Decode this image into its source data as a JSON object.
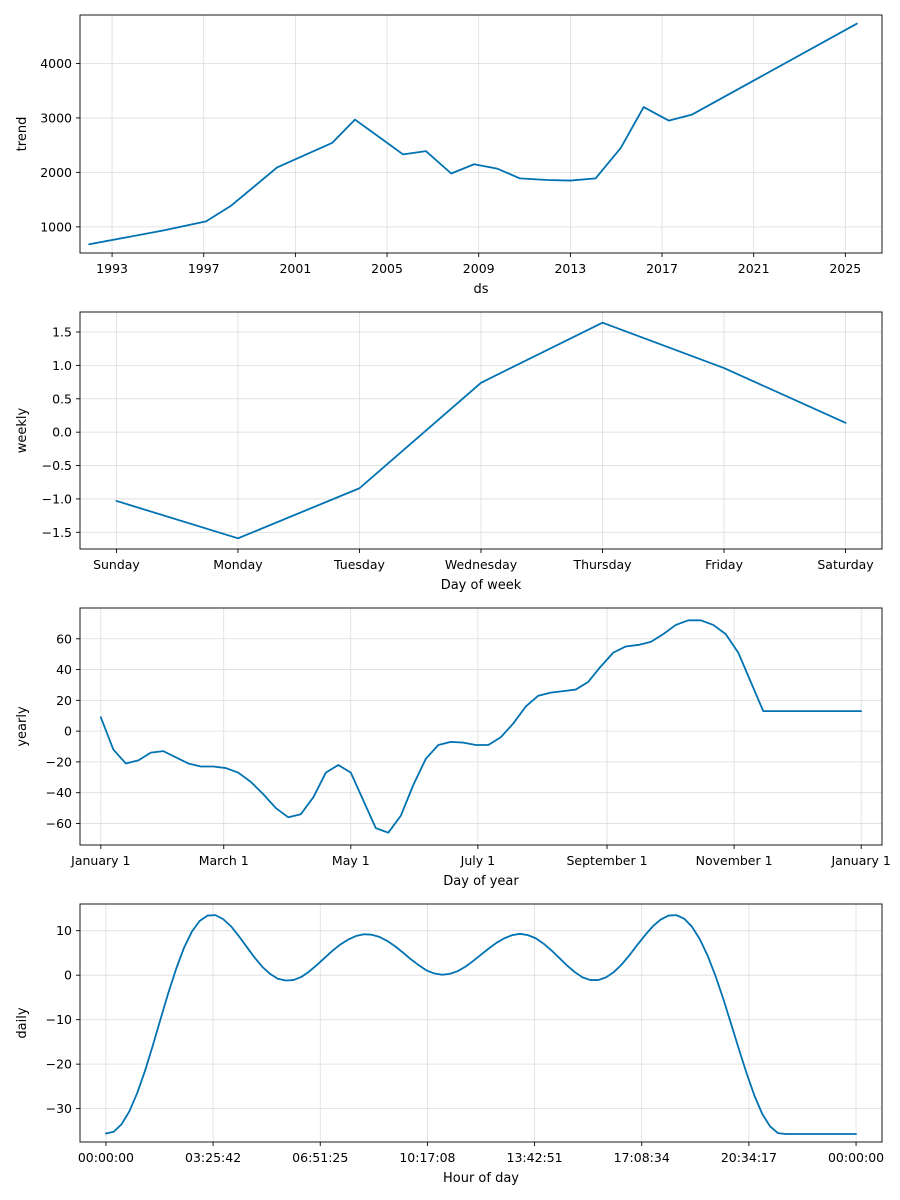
{
  "chart_data": [
    {
      "type": "line",
      "name": "trend",
      "xlabel": "ds",
      "ylabel": "trend",
      "grid": true,
      "xlim": [
        1991.6,
        2026.6
      ],
      "ylim": [
        520,
        4890
      ],
      "xticks": [
        1993,
        1997,
        2001,
        2005,
        2009,
        2013,
        2017,
        2021,
        2025
      ],
      "xtick_labels": [
        "1993",
        "1997",
        "2001",
        "2005",
        "2009",
        "2013",
        "2017",
        "2021",
        "2025"
      ],
      "yticks": [
        1000,
        2000,
        3000,
        4000
      ],
      "ytick_labels": [
        "1000",
        "2000",
        "3000",
        "4000"
      ],
      "x": [
        1992.0,
        1995.2,
        1997.1,
        1998.2,
        2000.2,
        2002.6,
        2003.6,
        2005.7,
        2006.7,
        2007.8,
        2008.8,
        2009.8,
        2010.8,
        2012.0,
        2013.0,
        2014.1,
        2015.2,
        2016.2,
        2017.3,
        2018.3,
        2025.5
      ],
      "y": [
        680,
        930,
        1100,
        1390,
        2090,
        2540,
        2970,
        2330,
        2390,
        1980,
        2150,
        2070,
        1890,
        1860,
        1850,
        1890,
        2450,
        3200,
        2950,
        3060,
        4730
      ]
    },
    {
      "type": "line",
      "name": "weekly",
      "xlabel": "Day of week",
      "ylabel": "weekly",
      "grid": true,
      "xlim": [
        -0.3,
        6.3
      ],
      "ylim": [
        -1.75,
        1.8
      ],
      "xticks": [
        0,
        1,
        2,
        3,
        4,
        5,
        6
      ],
      "xtick_labels": [
        "Sunday",
        "Monday",
        "Tuesday",
        "Wednesday",
        "Thursday",
        "Friday",
        "Saturday"
      ],
      "yticks": [
        -1.5,
        -1.0,
        -0.5,
        0.0,
        0.5,
        1.0,
        1.5
      ],
      "ytick_labels": [
        "−1.5",
        "−1.0",
        "−0.5",
        "0.0",
        "0.5",
        "1.0",
        "1.5"
      ],
      "x": [
        0,
        1,
        2,
        3,
        4,
        5,
        6
      ],
      "y": [
        -1.03,
        -1.59,
        -0.84,
        0.74,
        1.64,
        0.96,
        0.14
      ]
    },
    {
      "type": "line",
      "name": "yearly",
      "xlabel": "Day of year",
      "ylabel": "yearly",
      "grid": true,
      "xlim": [
        -10,
        375
      ],
      "ylim": [
        -74,
        80
      ],
      "xticks": [
        0,
        59,
        120,
        181,
        243,
        304,
        365
      ],
      "xtick_labels": [
        "January 1",
        "March 1",
        "May 1",
        "July 1",
        "September 1",
        "November 1",
        "January 1"
      ],
      "yticks": [
        -60,
        -40,
        -20,
        0,
        20,
        40,
        60
      ],
      "ytick_labels": [
        "−60",
        "−40",
        "−20",
        "0",
        "20",
        "40",
        "60"
      ],
      "x": [
        0,
        6,
        12,
        18,
        24,
        30,
        36,
        42,
        48,
        54,
        60,
        66,
        72,
        78,
        84,
        90,
        96,
        102,
        108,
        114,
        120,
        126,
        132,
        138,
        144,
        150,
        156,
        162,
        168,
        174,
        180,
        186,
        192,
        198,
        204,
        210,
        216,
        222,
        228,
        234,
        240,
        246,
        252,
        258,
        264,
        270,
        276,
        282,
        288,
        294,
        300,
        306,
        312,
        318,
        324,
        330,
        336,
        342,
        348,
        354,
        360,
        365
      ],
      "y": [
        9,
        -12,
        -21,
        -19,
        -14,
        -13,
        -17,
        -21,
        -23,
        -23,
        -24,
        -27,
        -33,
        -41,
        -50,
        -56,
        -54,
        -43,
        -27,
        -22,
        -27,
        -45,
        -63,
        -66,
        -55,
        -35,
        -18,
        -9,
        -7,
        -7.5,
        -9,
        -9,
        -4,
        5,
        16,
        23,
        25,
        26,
        27,
        32,
        42,
        51,
        55,
        56,
        58,
        63,
        69,
        72,
        72,
        69,
        63,
        51,
        32,
        13,
        13,
        13,
        13,
        13,
        13,
        13,
        13,
        13
      ],
      "x_detail": [
        0,
        6,
        12,
        18,
        24,
        30,
        36,
        42,
        48,
        54,
        60,
        66,
        72,
        78,
        84,
        90,
        96,
        102,
        108,
        114,
        120,
        126,
        132,
        138,
        144,
        150,
        156,
        162,
        168,
        174,
        180,
        186,
        192,
        198,
        204,
        210,
        216,
        222,
        228,
        234,
        240,
        246,
        252,
        258,
        264,
        270,
        276,
        282,
        288,
        294,
        300,
        306,
        312,
        318,
        324,
        330,
        336,
        342,
        348,
        354,
        360,
        365
      ],
      "y_detail": [
        9,
        -12,
        -21,
        -19,
        -14,
        -13,
        -17,
        -21,
        -23,
        -23,
        -24,
        -27,
        -33,
        -41,
        -50,
        -56,
        -54,
        -43,
        -27,
        -22,
        -27,
        -45,
        -63,
        -66,
        -55,
        -35,
        -18,
        -9,
        -7,
        -7.5,
        -9,
        -9,
        -4,
        5,
        16,
        23,
        25,
        26,
        27,
        32,
        42,
        51,
        55,
        56,
        58,
        63,
        69,
        72,
        72,
        69,
        63,
        51,
        32,
        13,
        13,
        13,
        13,
        13,
        13,
        13,
        13,
        13
      ]
    },
    {
      "type": "line",
      "name": "daily",
      "xlabel": "Hour of day",
      "ylabel": "daily",
      "grid": true,
      "xlim": [
        -0.83,
        24.83
      ],
      "ylim": [
        -37.5,
        16
      ],
      "xticks": [
        0,
        3.4284,
        6.8569,
        10.2856,
        13.7142,
        17.1428,
        20.5714,
        24
      ],
      "xtick_labels": [
        "00:00:00",
        "03:25:42",
        "06:51:25",
        "10:17:08",
        "13:42:51",
        "17:08:34",
        "20:34:17",
        "00:00:00"
      ],
      "yticks": [
        -30,
        -20,
        -10,
        0,
        10
      ],
      "ytick_labels": [
        "−30",
        "−20",
        "−10",
        "0",
        "10"
      ],
      "x": [
        0,
        0.25,
        0.5,
        0.75,
        1,
        1.25,
        1.5,
        1.75,
        2,
        2.25,
        2.5,
        2.75,
        3,
        3.25,
        3.5,
        3.75,
        4,
        4.25,
        4.5,
        4.75,
        5,
        5.25,
        5.5,
        5.75,
        6,
        6.25,
        6.5,
        6.75,
        7,
        7.25,
        7.5,
        7.75,
        8,
        8.25,
        8.5,
        8.75,
        9,
        9.25,
        9.5,
        9.75,
        10,
        10.25,
        10.5,
        10.75,
        11,
        11.25,
        11.5,
        11.75,
        12,
        12.25,
        12.5,
        12.75,
        13,
        13.25,
        13.5,
        13.75,
        14,
        14.25,
        14.5,
        14.75,
        15,
        15.25,
        15.5,
        15.75,
        16,
        16.25,
        16.5,
        16.75,
        17,
        17.25,
        17.5,
        17.75,
        18,
        18.25,
        18.5,
        18.75,
        19,
        19.25,
        19.5,
        19.75,
        20,
        20.25,
        20.5,
        20.75,
        21,
        21.25,
        21.5,
        21.75,
        22,
        22.25,
        22.5,
        22.75,
        23,
        23.25,
        23.5,
        23.75,
        24
      ],
      "y": [
        -35.6,
        -35.2,
        -33.5,
        -30.6,
        -26.5,
        -21.5,
        -15.8,
        -9.8,
        -3.9,
        1.5,
        6.2,
        9.8,
        12.2,
        13.4,
        13.5,
        12.6,
        11.0,
        8.8,
        6.4,
        4.0,
        1.9,
        0.3,
        -0.8,
        -1.2,
        -1.1,
        -0.4,
        0.8,
        2.3,
        3.9,
        5.5,
        6.9,
        8.0,
        8.8,
        9.2,
        9.1,
        8.6,
        7.7,
        6.5,
        5.1,
        3.6,
        2.3,
        1.1,
        0.4,
        0.1,
        0.3,
        0.9,
        1.9,
        3.2,
        4.6,
        6.0,
        7.3,
        8.3,
        9.0,
        9.3,
        9.0,
        8.3,
        7.1,
        5.6,
        3.9,
        2.2,
        0.7,
        -0.5,
        -1.1,
        -1.1,
        -0.5,
        0.7,
        2.4,
        4.5,
        6.8,
        9.0,
        11.0,
        12.5,
        13.4,
        13.5,
        12.7,
        10.9,
        8.1,
        4.4,
        -0.1,
        -5.3,
        -10.9,
        -16.6,
        -22.1,
        -27.1,
        -31.2,
        -34.0,
        -35.5,
        -35.7,
        -35.7,
        -35.7,
        -35.7,
        -35.7,
        -35.7,
        -35.7,
        -35.7,
        -35.7,
        -35.7
      ],
      "series_color": "#0072B2"
    }
  ],
  "colors": {
    "series": "#0072B2",
    "grid": "#dddddd",
    "frame": "#000000"
  }
}
